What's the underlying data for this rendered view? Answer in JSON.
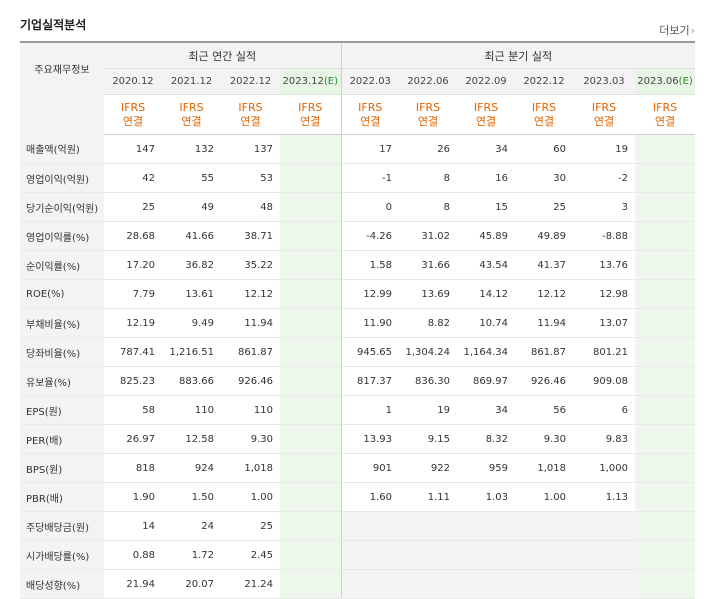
{
  "title": "기업실적분석",
  "more_link": "더보기",
  "row_header": "주요재무정보",
  "groups": {
    "annual": "최근 연간 실적",
    "quarterly": "최근 분기 실적"
  },
  "periods": [
    {
      "label": "2020.12",
      "est": ""
    },
    {
      "label": "2021.12",
      "est": ""
    },
    {
      "label": "2022.12",
      "est": ""
    },
    {
      "label": "2023.12",
      "est": "(E)"
    },
    {
      "label": "2022.03",
      "est": ""
    },
    {
      "label": "2022.06",
      "est": ""
    },
    {
      "label": "2022.09",
      "est": ""
    },
    {
      "label": "2022.12",
      "est": ""
    },
    {
      "label": "2023.03",
      "est": ""
    },
    {
      "label": "2023.06",
      "est": "(E)"
    }
  ],
  "ifrs": {
    "line1": "IFRS",
    "line2": "연결"
  },
  "rows": [
    {
      "label": "매출액(억원)",
      "values": [
        "147",
        "132",
        "137",
        "",
        "17",
        "26",
        "34",
        "60",
        "19",
        ""
      ]
    },
    {
      "label": "영업이익(억원)",
      "values": [
        "42",
        "55",
        "53",
        "",
        "-1",
        "8",
        "16",
        "30",
        "-2",
        ""
      ]
    },
    {
      "label": "당기순이익(억원)",
      "values": [
        "25",
        "49",
        "48",
        "",
        "0",
        "8",
        "15",
        "25",
        "3",
        ""
      ]
    },
    {
      "label": "영업이익률(%)",
      "values": [
        "28.68",
        "41.66",
        "38.71",
        "",
        "-4.26",
        "31.02",
        "45.89",
        "49.89",
        "-8.88",
        ""
      ]
    },
    {
      "label": "순이익률(%)",
      "values": [
        "17.20",
        "36.82",
        "35.22",
        "",
        "1.58",
        "31.66",
        "43.54",
        "41.37",
        "13.76",
        ""
      ]
    },
    {
      "label": "ROE(%)",
      "values": [
        "7.79",
        "13.61",
        "12.12",
        "",
        "12.99",
        "13.69",
        "14.12",
        "12.12",
        "12.98",
        ""
      ]
    },
    {
      "label": "부채비율(%)",
      "values": [
        "12.19",
        "9.49",
        "11.94",
        "",
        "11.90",
        "8.82",
        "10.74",
        "11.94",
        "13.07",
        ""
      ]
    },
    {
      "label": "당좌비율(%)",
      "values": [
        "787.41",
        "1,216.51",
        "861.87",
        "",
        "945.65",
        "1,304.24",
        "1,164.34",
        "861.87",
        "801.21",
        ""
      ]
    },
    {
      "label": "유보율(%)",
      "values": [
        "825.23",
        "883.66",
        "926.46",
        "",
        "817.37",
        "836.30",
        "869.97",
        "926.46",
        "909.08",
        ""
      ]
    },
    {
      "label": "EPS(원)",
      "values": [
        "58",
        "110",
        "110",
        "",
        "1",
        "19",
        "34",
        "56",
        "6",
        ""
      ]
    },
    {
      "label": "PER(배)",
      "values": [
        "26.97",
        "12.58",
        "9.30",
        "",
        "13.93",
        "9.15",
        "8.32",
        "9.30",
        "9.83",
        ""
      ]
    },
    {
      "label": "BPS(원)",
      "values": [
        "818",
        "924",
        "1,018",
        "",
        "901",
        "922",
        "959",
        "1,018",
        "1,000",
        ""
      ]
    },
    {
      "label": "PBR(배)",
      "values": [
        "1.90",
        "1.50",
        "1.00",
        "",
        "1.60",
        "1.11",
        "1.03",
        "1.00",
        "1.13",
        ""
      ]
    },
    {
      "label": "주당배당금(원)",
      "values": [
        "14",
        "24",
        "25",
        "",
        "",
        "",
        "",
        "",
        "",
        ""
      ]
    },
    {
      "label": "시가배당률(%)",
      "values": [
        "0.88",
        "1.72",
        "2.45",
        "",
        "",
        "",
        "",
        "",
        "",
        ""
      ]
    },
    {
      "label": "배당성향(%)",
      "values": [
        "21.94",
        "20.07",
        "21.24",
        "",
        "",
        "",
        "",
        "",
        "",
        ""
      ]
    }
  ],
  "colors": {
    "ifrs": "#e06400",
    "negative": "#e02020",
    "estimate_bg": "#eef7ec",
    "estimate_mark": "#2e8b2e"
  }
}
